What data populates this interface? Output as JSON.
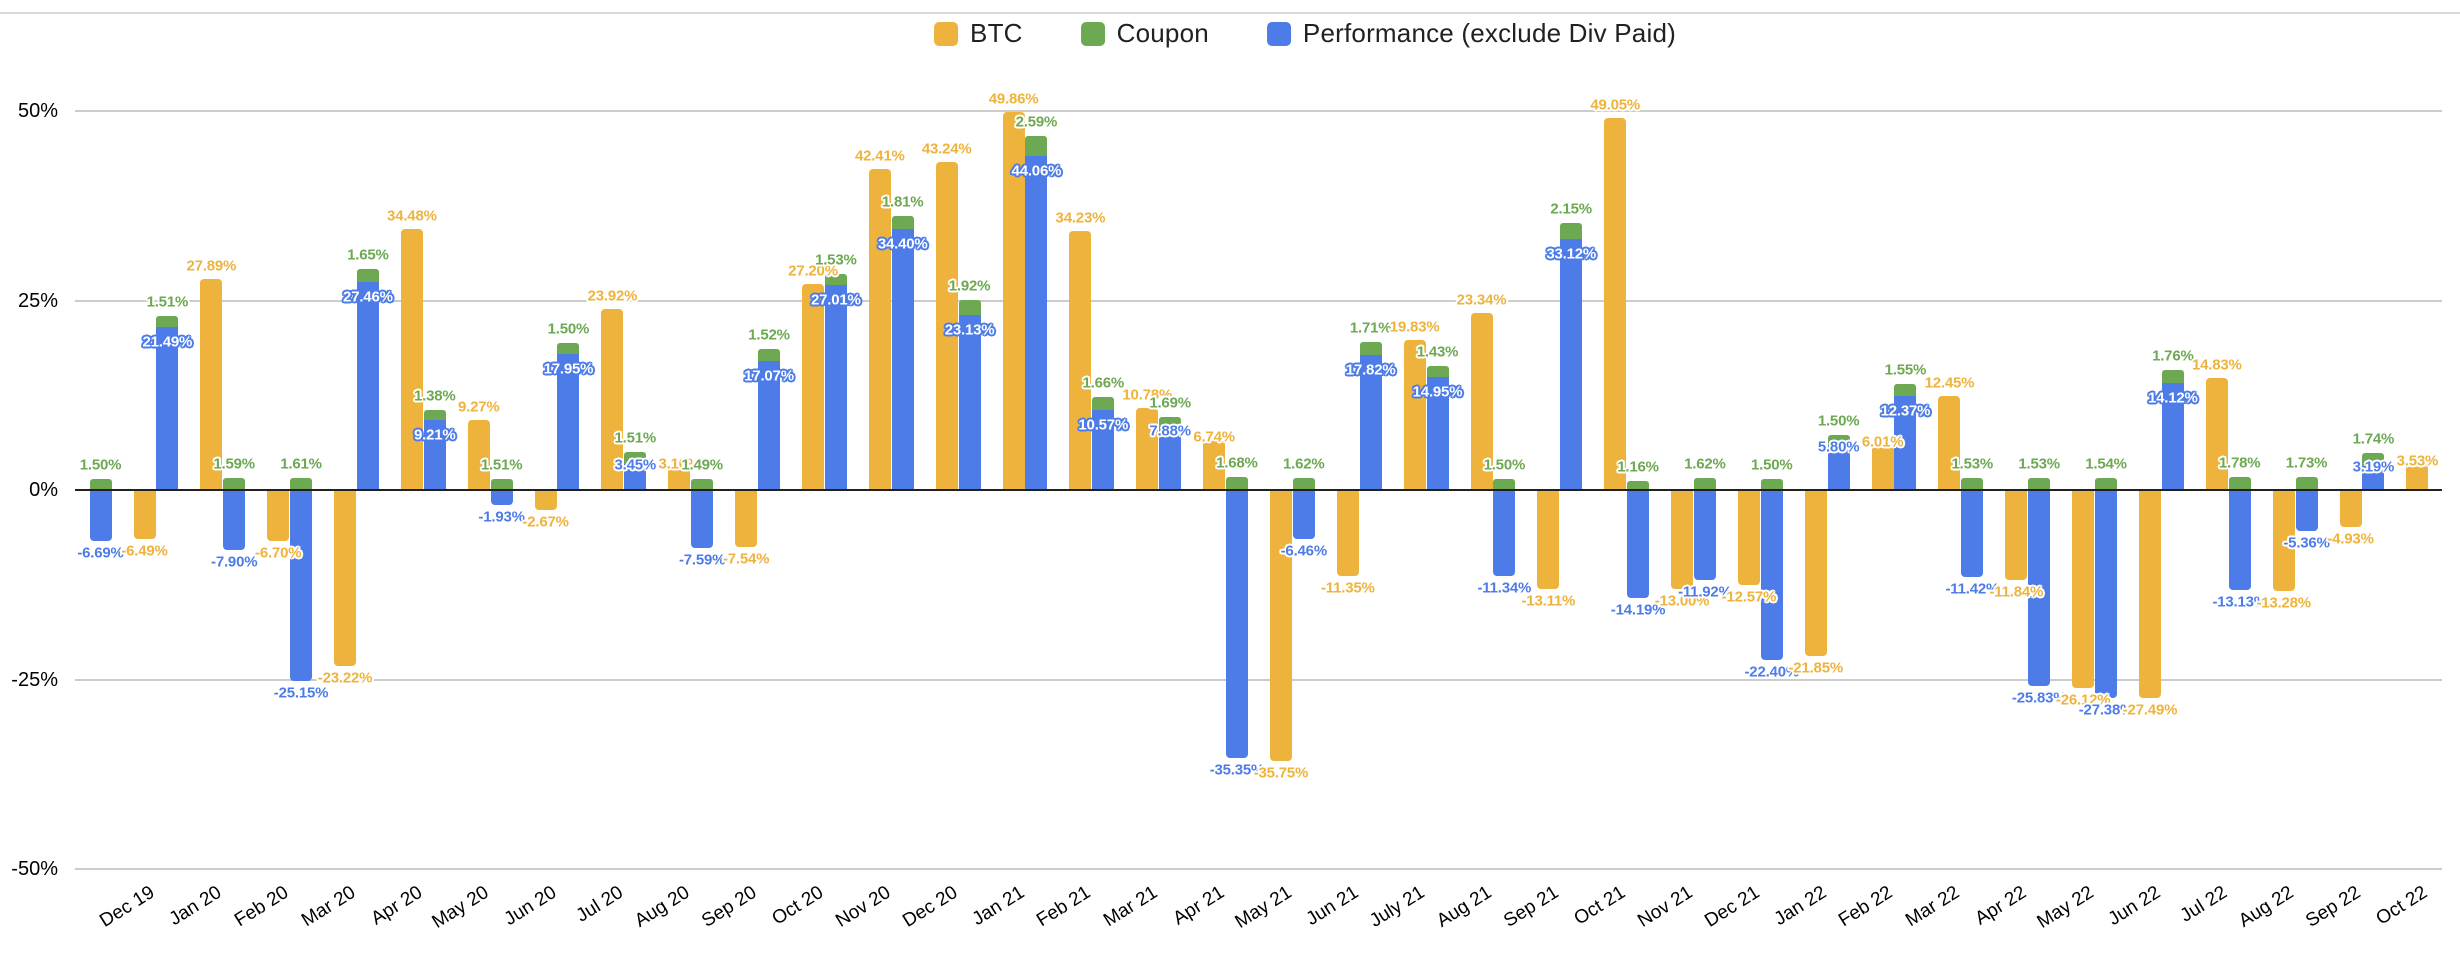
{
  "legend": {
    "items": [
      {
        "label": "BTC",
        "color": "#EEB33C"
      },
      {
        "label": "Coupon",
        "color": "#6DA852"
      },
      {
        "label": "Performance (exclude Div Paid)",
        "color": "#4D7CE8"
      }
    ]
  },
  "y_axis": {
    "ticks": [
      {
        "label": "50%",
        "value": 50
      },
      {
        "label": "25%",
        "value": 25
      },
      {
        "label": "0%",
        "value": 0
      },
      {
        "label": "-25%",
        "value": -25
      },
      {
        "label": "-50%",
        "value": -50
      }
    ]
  },
  "chart_data": {
    "type": "bar",
    "title": "",
    "xlabel": "",
    "ylabel": "",
    "ylim": [
      -50,
      50
    ],
    "grid": true,
    "legend_position": "top",
    "value_format": "0.00%",
    "stacked_series": [
      "Performance (exclude Div Paid)",
      "Coupon"
    ],
    "categories": [
      "Dec 19",
      "Jan 20",
      "Feb 20",
      "Mar 20",
      "Apr 20",
      "May 20",
      "Jun 20",
      "Jul 20",
      "Aug 20",
      "Sep 20",
      "Oct 20",
      "Nov 20",
      "Dec 20",
      "Jan 21",
      "Feb 21",
      "Mar 21",
      "Apr 21",
      "May 21",
      "Jun 21",
      "July 21",
      "Aug 21",
      "Sep 21",
      "Oct 21",
      "Nov 21",
      "Dec 21",
      "Jan 22",
      "Feb 22",
      "Mar 22",
      "Apr 22",
      "May 22",
      "Jun 22",
      "Jul 22",
      "Aug 22",
      "Sep 22",
      "Oct 22"
    ],
    "series": [
      {
        "name": "BTC",
        "color": "#EEB33C",
        "values": [
          -6.49,
          27.89,
          -6.7,
          -23.22,
          34.48,
          9.27,
          -2.67,
          23.92,
          3.16,
          -7.54,
          27.2,
          42.41,
          43.24,
          49.86,
          34.23,
          10.78,
          6.74,
          -35.75,
          -11.35,
          19.83,
          23.34,
          -13.11,
          49.05,
          -13.0,
          -12.57,
          -21.85,
          6.01,
          12.45,
          -11.84,
          -26.12,
          -27.49,
          14.83,
          -13.28,
          -4.93,
          3.53
        ]
      },
      {
        "name": "Coupon",
        "color": "#6DA852",
        "values": [
          1.5,
          1.51,
          1.59,
          1.61,
          1.65,
          1.38,
          1.51,
          1.5,
          1.51,
          1.49,
          1.52,
          1.53,
          1.81,
          1.92,
          2.59,
          1.66,
          1.69,
          1.68,
          1.62,
          1.71,
          1.43,
          1.5,
          2.15,
          1.16,
          1.62,
          1.5,
          1.5,
          1.55,
          1.53,
          1.53,
          1.54,
          1.76,
          1.78,
          1.73,
          1.74
        ]
      },
      {
        "name": "Performance (exclude Div Paid)",
        "color": "#4D7CE8",
        "values": [
          -6.69,
          21.49,
          -7.9,
          -25.15,
          27.46,
          9.21,
          -1.93,
          17.95,
          3.45,
          -7.59,
          17.07,
          27.01,
          34.4,
          23.13,
          44.06,
          10.57,
          7.88,
          -35.35,
          -6.46,
          17.82,
          14.95,
          -11.34,
          33.12,
          -14.19,
          -11.92,
          -22.4,
          5.8,
          12.37,
          -11.42,
          -25.83,
          -27.38,
          14.12,
          -13.13,
          -5.36,
          3.19
        ]
      }
    ]
  }
}
